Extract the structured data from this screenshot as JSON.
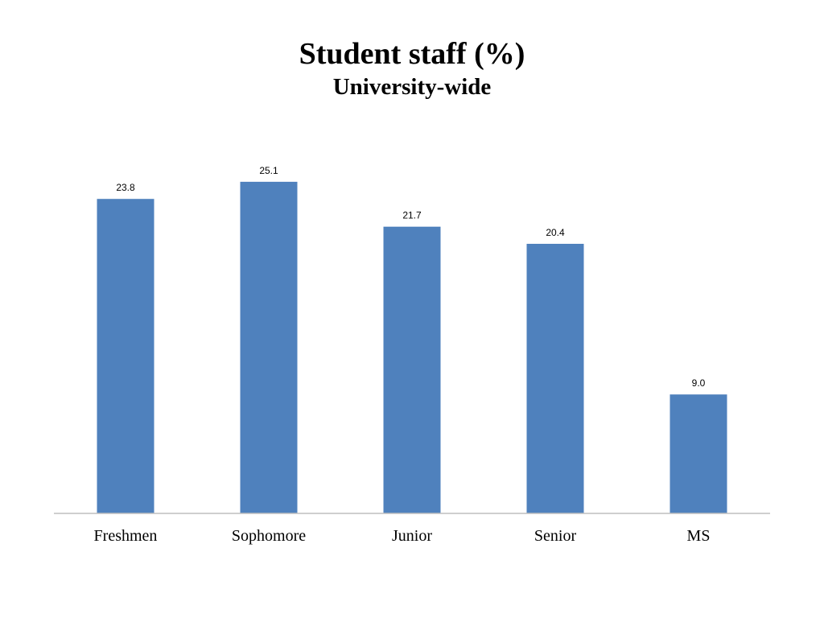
{
  "slide": {
    "title": "Student staff (%)",
    "subtitle": "University-wide"
  },
  "chart_data": {
    "type": "bar",
    "title": "Student staff (%)",
    "subtitle": "University-wide",
    "categories": [
      "Freshmen",
      "Sophomore",
      "Junior",
      "Senior",
      "MS"
    ],
    "values": [
      23.8,
      25.1,
      21.7,
      20.4,
      9.0
    ],
    "data_labels": [
      "23.8",
      "25.1",
      "21.7",
      "20.4",
      "9.0"
    ],
    "xlabel": "",
    "ylabel": "",
    "ylim": [
      0,
      27
    ],
    "grid": false,
    "legend": "none",
    "bar_color": "#4f81bd",
    "axis_color": "#bfbfbf"
  }
}
